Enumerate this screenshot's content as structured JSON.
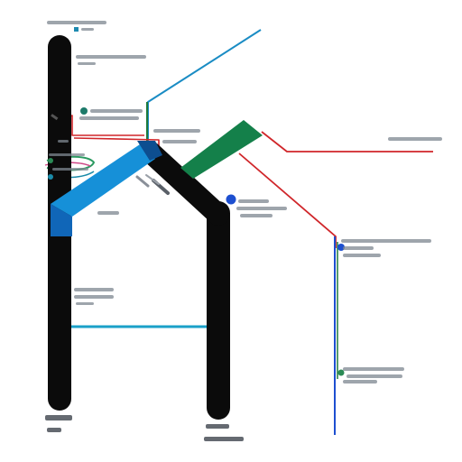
{
  "diagram": {
    "colors": {
      "background": "#ffffff",
      "structure": "#0b0b0b",
      "blue_panel": "#1690d8",
      "blue_panel_dark": "#1066b8",
      "green_panel": "#14804a",
      "wire_blue": "#1a8cc4",
      "wire_green": "#1f7a3a",
      "wire_red": "#d0262a",
      "wire_cyan": "#1aa0c8",
      "marker_blue": "#1d4fd0",
      "marker_teal": "#1d7a6a",
      "marker_green": "#2a8a55",
      "text_smudge": "#7d8790"
    },
    "note": ""
  }
}
